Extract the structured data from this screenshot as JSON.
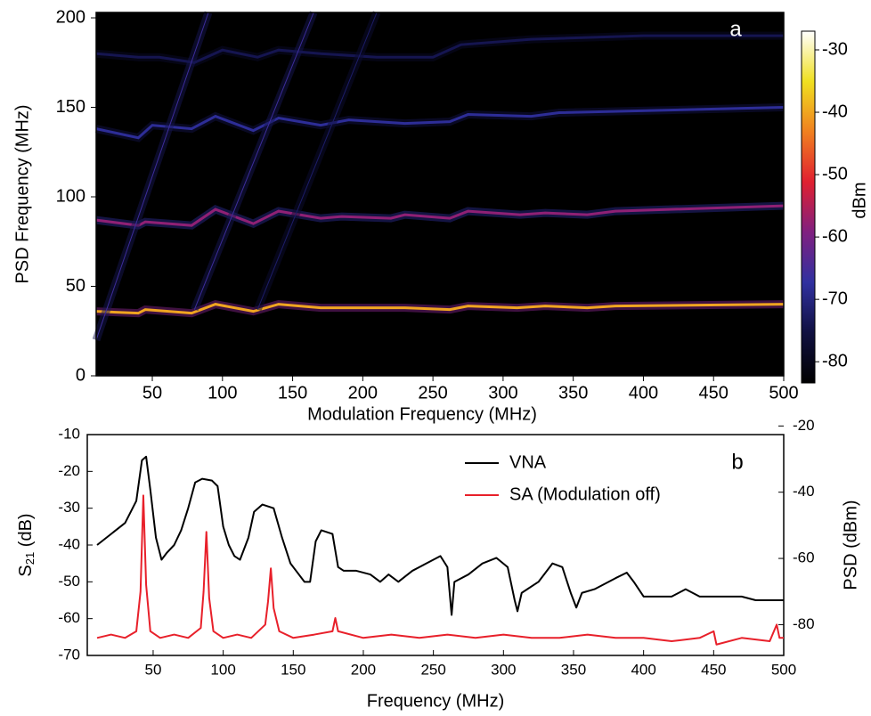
{
  "chart_data": [
    {
      "type": "heatmap",
      "annotation": "a",
      "xlabel": "Modulation Frequency (MHz)",
      "ylabel": "PSD Frequency (MHz)",
      "xlim": [
        10,
        500
      ],
      "ylim": [
        0,
        203
      ],
      "xticks": [
        50,
        100,
        150,
        200,
        250,
        300,
        350,
        400,
        450,
        500
      ],
      "yticks": [
        0,
        50,
        100,
        150,
        200
      ],
      "colorbar": {
        "label": "dBm",
        "zlim": [
          -83.4,
          -27
        ],
        "zticks": [
          -30,
          -40,
          -50,
          -60,
          -70,
          -80
        ],
        "colorscale": [
          "#000000",
          "#101040",
          "#3030a0",
          "#802080",
          "#e02030",
          "#f08020",
          "#f0e020",
          "#ffffff"
        ]
      },
      "traces": [
        {
          "level": -40,
          "x": [
            10,
            40,
            45,
            78,
            95,
            122,
            140,
            170,
            185,
            215,
            230,
            262,
            275,
            310,
            330,
            360,
            380,
            500
          ],
          "y": [
            36,
            35,
            37,
            35,
            40,
            36,
            40,
            38,
            38,
            38,
            38,
            37,
            39,
            38,
            39,
            38,
            39,
            40
          ]
        },
        {
          "level": -58,
          "x": [
            10,
            40,
            45,
            78,
            95,
            122,
            140,
            170,
            185,
            220,
            230,
            262,
            275,
            312,
            330,
            360,
            380,
            500
          ],
          "y": [
            87,
            84,
            86,
            84,
            93,
            85,
            92,
            88,
            89,
            88,
            90,
            88,
            92,
            90,
            91,
            90,
            92,
            95
          ]
        },
        {
          "level": -68,
          "x": [
            10,
            40,
            50,
            78,
            95,
            122,
            140,
            170,
            190,
            230,
            262,
            275,
            320,
            340,
            500
          ],
          "y": [
            138,
            133,
            140,
            138,
            145,
            137,
            144,
            140,
            143,
            141,
            142,
            146,
            145,
            147,
            150
          ]
        },
        {
          "level": -74,
          "x": [
            10,
            40,
            55,
            80,
            100,
            125,
            140,
            170,
            210,
            250,
            270,
            320,
            400,
            500
          ],
          "y": [
            180,
            178,
            178,
            175,
            182,
            178,
            182,
            180,
            178,
            178,
            185,
            188,
            190,
            190
          ]
        },
        {
          "level": -66,
          "x": [
            10,
            90
          ],
          "y": [
            20,
            203
          ]
        },
        {
          "level": -66,
          "x": [
            80,
            165
          ],
          "y": [
            37,
            203
          ]
        },
        {
          "level": -72,
          "x": [
            125,
            210
          ],
          "y": [
            37,
            203
          ]
        }
      ]
    },
    {
      "type": "line",
      "annotation": "b",
      "xlabel": "Frequency (MHz)",
      "ylabel": "S",
      "ylabel_subscript": "21",
      "ylabel_unit": " (dB)",
      "y2label": "PSD (dBm)",
      "xlim": [
        3,
        500
      ],
      "ylim": [
        -70,
        -10
      ],
      "y2lim": [
        -89.3,
        -22.6
      ],
      "xticks": [
        50,
        100,
        150,
        200,
        250,
        300,
        350,
        400,
        450,
        500
      ],
      "yticks": [
        -10,
        -20,
        -30,
        -40,
        -50,
        -60,
        -70
      ],
      "y2ticks": [
        -20,
        -40,
        -60,
        -80
      ],
      "series": [
        {
          "name": "VNA",
          "color": "#000000",
          "x": [
            10,
            20,
            30,
            38,
            42,
            45,
            48,
            52,
            56,
            60,
            65,
            70,
            75,
            80,
            85,
            92,
            96,
            100,
            104,
            108,
            112,
            118,
            122,
            128,
            136,
            142,
            148,
            152,
            158,
            162,
            166,
            170,
            178,
            182,
            186,
            195,
            205,
            212,
            218,
            225,
            235,
            245,
            255,
            260,
            263,
            265,
            275,
            285,
            295,
            303,
            308,
            310,
            313,
            325,
            335,
            342,
            348,
            352,
            356,
            365,
            380,
            388,
            393,
            400,
            420,
            430,
            440,
            470,
            480,
            500
          ],
          "values": [
            -40,
            -37,
            -34,
            -28,
            -17,
            -16,
            -25,
            -38,
            -44,
            -42,
            -40,
            -36,
            -30,
            -23,
            -22,
            -22.5,
            -24,
            -35,
            -40,
            -43,
            -44,
            -38,
            -31,
            -29,
            -30,
            -38,
            -45,
            -47,
            -50,
            -50,
            -39,
            -36,
            -37,
            -46,
            -47,
            -47,
            -48,
            -50,
            -48,
            -50,
            -47,
            -45,
            -43,
            -46,
            -59,
            -50,
            -48,
            -45,
            -43.5,
            -46,
            -55,
            -58,
            -53,
            -50,
            -45,
            -46,
            -53,
            -57,
            -53,
            -52,
            -49,
            -47.5,
            -50,
            -54,
            -54,
            -52,
            -54,
            -54,
            -55,
            -55
          ]
        },
        {
          "name": "SA (Modulation off)",
          "color": "#e8202a",
          "axis": "y2",
          "x": [
            10,
            20,
            30,
            38,
            41,
            43,
            45,
            48,
            55,
            65,
            75,
            84,
            86,
            88,
            90,
            93,
            100,
            110,
            120,
            130,
            132,
            134,
            136,
            140,
            150,
            165,
            178,
            180,
            182,
            200,
            220,
            240,
            260,
            280,
            300,
            320,
            340,
            360,
            380,
            400,
            420,
            440,
            450,
            452,
            470,
            490,
            495,
            497,
            500
          ],
          "values": [
            -84,
            -83,
            -84,
            -82,
            -70,
            -41,
            -68,
            -82,
            -84,
            -83,
            -84,
            -81,
            -70,
            -52,
            -72,
            -82,
            -84,
            -83,
            -84,
            -80,
            -73,
            -63,
            -75,
            -82,
            -84,
            -83,
            -82,
            -78,
            -82,
            -84,
            -83,
            -84,
            -83,
            -84,
            -83,
            -84,
            -84,
            -83,
            -84,
            -84,
            -85,
            -84,
            -82,
            -86,
            -84,
            -85,
            -80,
            -84,
            -84
          ]
        }
      ]
    }
  ]
}
